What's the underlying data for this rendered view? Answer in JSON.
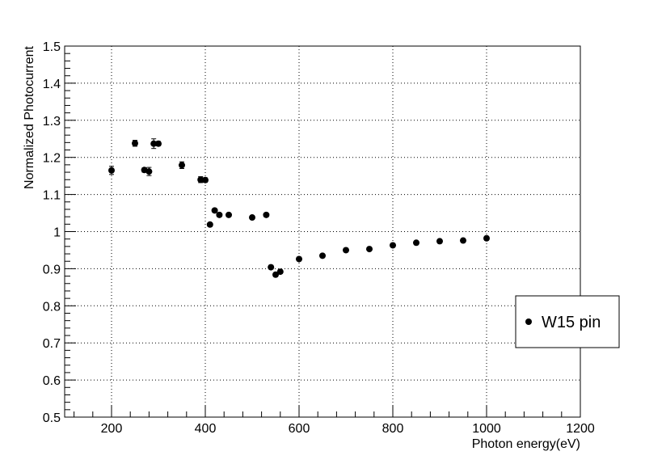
{
  "chart_data": {
    "type": "scatter",
    "title": "",
    "xlabel": "Photon energy(eV)",
    "ylabel": "Normalized Photocurrent",
    "xlim": [
      100,
      1200
    ],
    "ylim": [
      0.5,
      1.5
    ],
    "x_ticks": [
      "200",
      "400",
      "600",
      "800",
      "1000",
      "1200"
    ],
    "y_ticks": [
      "0.5",
      "0.6",
      "0.7",
      "0.8",
      "0.9",
      "1",
      "1.1",
      "1.2",
      "1.3",
      "1.4",
      "1.5"
    ],
    "grid": true,
    "legend_position": "right",
    "series": [
      {
        "name": "W15  pin",
        "color": "#000000",
        "marker": "circle",
        "points": [
          {
            "x": 200,
            "y": 1.165,
            "err": 0.011
          },
          {
            "x": 250,
            "y": 1.238,
            "err": 0.008
          },
          {
            "x": 270,
            "y": 1.166,
            "err": 0.006
          },
          {
            "x": 280,
            "y": 1.162,
            "err": 0.011
          },
          {
            "x": 290,
            "y": 1.237,
            "err": 0.013
          },
          {
            "x": 300,
            "y": 1.237,
            "err": 0.006
          },
          {
            "x": 350,
            "y": 1.179,
            "err": 0.009
          },
          {
            "x": 390,
            "y": 1.14,
            "err": 0.008
          },
          {
            "x": 400,
            "y": 1.139,
            "err": 0.006
          },
          {
            "x": 410,
            "y": 1.019,
            "err": 0.005
          },
          {
            "x": 420,
            "y": 1.057,
            "err": 0.005
          },
          {
            "x": 430,
            "y": 1.045,
            "err": 0.005
          },
          {
            "x": 450,
            "y": 1.045,
            "err": 0.005
          },
          {
            "x": 500,
            "y": 1.038,
            "err": 0.005
          },
          {
            "x": 530,
            "y": 1.045,
            "err": 0.005
          },
          {
            "x": 540,
            "y": 0.904,
            "err": 0.005
          },
          {
            "x": 550,
            "y": 0.884,
            "err": 0.005
          },
          {
            "x": 560,
            "y": 0.892,
            "err": 0.005
          },
          {
            "x": 600,
            "y": 0.926,
            "err": 0.005
          },
          {
            "x": 650,
            "y": 0.935,
            "err": 0.005
          },
          {
            "x": 700,
            "y": 0.95,
            "err": 0.005
          },
          {
            "x": 750,
            "y": 0.953,
            "err": 0.005
          },
          {
            "x": 800,
            "y": 0.963,
            "err": 0.005
          },
          {
            "x": 850,
            "y": 0.97,
            "err": 0.005
          },
          {
            "x": 900,
            "y": 0.974,
            "err": 0.005
          },
          {
            "x": 950,
            "y": 0.976,
            "err": 0.005
          },
          {
            "x": 1000,
            "y": 0.982,
            "err": 0.005
          }
        ]
      }
    ]
  }
}
